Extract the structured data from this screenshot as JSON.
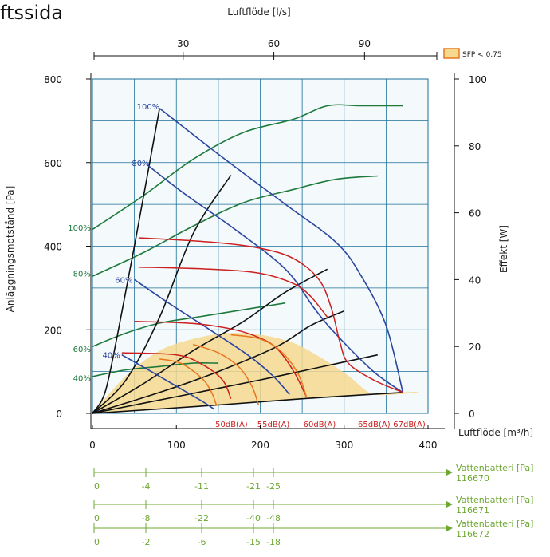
{
  "title": "ftssida",
  "chart_data": {
    "type": "line",
    "top_axis": {
      "label": "Luftflöde [l/s]",
      "ticks": [
        "30",
        "60",
        "90"
      ],
      "range": [
        0,
        111
      ]
    },
    "x_axis": {
      "label": "Luftflöde [m³/h]",
      "ticks": [
        "0",
        "100",
        "200",
        "300",
        "400"
      ],
      "range": [
        0,
        400
      ]
    },
    "y_left": {
      "label": "Anläggningsmotstånd [Pa]",
      "ticks": [
        "0",
        "200",
        "400",
        "600",
        "800"
      ],
      "range": [
        0,
        800
      ]
    },
    "y_right": {
      "label": "Effekt [W]",
      "ticks": [
        "0",
        "20",
        "40",
        "60",
        "80",
        "100"
      ],
      "range": [
        0,
        100
      ]
    },
    "legend": {
      "label": "SFP < 0,75",
      "color": "#f5d98e",
      "border": "#e8761c",
      "placement": "top-right"
    },
    "grid": true,
    "colors": {
      "pressure": "#2a45a0",
      "power": "#1e7a3c",
      "system": "#111111",
      "sound": "#cc1f1f",
      "sfp_border": "#e8761c",
      "sfp_fill": "#f5d98e",
      "batteries": "#6ea832"
    },
    "pressure_curves": [
      {
        "name": "100%",
        "points": [
          [
            80,
            730
          ],
          [
            150,
            620
          ],
          [
            230,
            500
          ],
          [
            290,
            410
          ],
          [
            320,
            330
          ],
          [
            350,
            210
          ],
          [
            370,
            50
          ]
        ]
      },
      {
        "name": "80%",
        "points": [
          [
            65,
            595
          ],
          [
            110,
            525
          ],
          [
            170,
            440
          ],
          [
            230,
            345
          ],
          [
            265,
            250
          ],
          [
            290,
            190
          ],
          [
            335,
            100
          ],
          [
            370,
            50
          ]
        ]
      },
      {
        "name": "60%",
        "points": [
          [
            50,
            320
          ],
          [
            90,
            265
          ],
          [
            140,
            200
          ],
          [
            185,
            140
          ],
          [
            215,
            90
          ],
          [
            235,
            45
          ]
        ]
      },
      {
        "name": "40%",
        "points": [
          [
            35,
            140
          ],
          [
            70,
            100
          ],
          [
            100,
            65
          ],
          [
            130,
            30
          ],
          [
            145,
            10
          ]
        ]
      }
    ],
    "power_curves": [
      {
        "name": "100%",
        "points": [
          [
            0,
            55
          ],
          [
            60,
            65
          ],
          [
            120,
            76
          ],
          [
            180,
            84
          ],
          [
            240,
            88
          ],
          [
            280,
            92
          ],
          [
            320,
            92
          ],
          [
            370,
            92
          ]
        ]
      },
      {
        "name": "80%",
        "points": [
          [
            0,
            41
          ],
          [
            60,
            48
          ],
          [
            120,
            56
          ],
          [
            180,
            63
          ],
          [
            240,
            67
          ],
          [
            290,
            70
          ],
          [
            340,
            71
          ]
        ]
      },
      {
        "name": "60%",
        "points": [
          [
            0,
            20
          ],
          [
            40,
            24
          ],
          [
            80,
            27
          ],
          [
            130,
            29
          ],
          [
            180,
            31
          ],
          [
            230,
            33
          ]
        ]
      },
      {
        "name": "40%",
        "points": [
          [
            0,
            11
          ],
          [
            40,
            13
          ],
          [
            80,
            14
          ],
          [
            120,
            15
          ],
          [
            150,
            15
          ]
        ]
      }
    ],
    "system_curves": [
      {
        "points": [
          [
            0,
            0
          ],
          [
            15,
            50
          ],
          [
            30,
            190
          ],
          [
            50,
            400
          ],
          [
            80,
            730
          ]
        ]
      },
      {
        "points": [
          [
            0,
            0
          ],
          [
            40,
            80
          ],
          [
            80,
            230
          ],
          [
            120,
            430
          ],
          [
            165,
            570
          ]
        ]
      },
      {
        "points": [
          [
            0,
            0
          ],
          [
            60,
            70
          ],
          [
            120,
            150
          ],
          [
            180,
            220
          ],
          [
            230,
            290
          ],
          [
            280,
            345
          ]
        ]
      },
      {
        "points": [
          [
            0,
            0
          ],
          [
            80,
            50
          ],
          [
            150,
            100
          ],
          [
            220,
            160
          ],
          [
            260,
            210
          ],
          [
            300,
            245
          ]
        ]
      },
      {
        "points": [
          [
            0,
            0
          ],
          [
            100,
            40
          ],
          [
            200,
            80
          ],
          [
            270,
            110
          ],
          [
            340,
            140
          ]
        ]
      },
      {
        "points": [
          [
            0,
            0
          ],
          [
            150,
            20
          ],
          [
            250,
            35
          ],
          [
            370,
            50
          ]
        ]
      }
    ],
    "sound_curves": [
      {
        "label": "",
        "points": [
          [
            55,
            420
          ],
          [
            140,
            410
          ],
          [
            200,
            395
          ],
          [
            240,
            370
          ],
          [
            270,
            320
          ],
          [
            285,
            250
          ],
          [
            295,
            170
          ],
          [
            305,
            120
          ],
          [
            335,
            80
          ],
          [
            370,
            50
          ]
        ]
      },
      {
        "label": "",
        "points": [
          [
            55,
            350
          ],
          [
            140,
            345
          ],
          [
            200,
            335
          ],
          [
            240,
            310
          ],
          [
            260,
            280
          ],
          [
            280,
            230
          ]
        ]
      },
      {
        "label": "",
        "points": [
          [
            50,
            220
          ],
          [
            120,
            215
          ],
          [
            170,
            200
          ],
          [
            200,
            180
          ],
          [
            220,
            155
          ],
          [
            240,
            100
          ],
          [
            255,
            40
          ]
        ]
      },
      {
        "label": "",
        "points": [
          [
            35,
            145
          ],
          [
            100,
            140
          ],
          [
            130,
            118
          ],
          [
            155,
            80
          ],
          [
            165,
            35
          ]
        ]
      },
      {
        "label": "50dB(A)",
        "points": [
          [
            80,
            130
          ],
          [
            105,
            120
          ],
          [
            130,
            85
          ],
          [
            142,
            50
          ],
          [
            148,
            18
          ]
        ]
      },
      {
        "label": "55dB(A)",
        "points": [
          [
            120,
            165
          ],
          [
            150,
            145
          ],
          [
            175,
            110
          ],
          [
            190,
            65
          ],
          [
            198,
            20
          ]
        ]
      },
      {
        "label": "60dB(A)",
        "points": [
          [
            165,
            188
          ],
          [
            200,
            178
          ],
          [
            225,
            148
          ],
          [
            245,
            95
          ],
          [
            255,
            40
          ]
        ]
      }
    ],
    "sfp_region": {
      "points": [
        [
          0,
          0
        ],
        [
          40,
          90
        ],
        [
          80,
          150
        ],
        [
          120,
          178
        ],
        [
          160,
          192
        ],
        [
          200,
          188
        ],
        [
          240,
          168
        ],
        [
          275,
          130
        ],
        [
          305,
          90
        ],
        [
          335,
          45
        ],
        [
          370,
          50
        ],
        [
          0,
          0
        ]
      ]
    },
    "labels": [
      {
        "text": "100%",
        "x": 80,
        "y": 735,
        "color": "pressure"
      },
      {
        "text": "80%",
        "x": 68,
        "y": 600,
        "color": "pressure"
      },
      {
        "text": "60%",
        "x": 48,
        "y": 320,
        "color": "pressure"
      },
      {
        "text": "40%",
        "x": 33,
        "y": 140,
        "color": "pressure"
      },
      {
        "text": "100%",
        "x": -2,
        "y": 445,
        "color": "power"
      },
      {
        "text": "80%",
        "x": -2,
        "y": 335,
        "color": "power"
      },
      {
        "text": "60%",
        "x": -2,
        "y": 155,
        "color": "power"
      },
      {
        "text": "40%",
        "x": -2,
        "y": 85,
        "color": "power"
      },
      {
        "text": "50dB(A)",
        "x": 185,
        "y": -25,
        "color": "sound"
      },
      {
        "text": "55dB(A)",
        "x": 235,
        "y": -25,
        "color": "sound"
      },
      {
        "text": "60dB(A)",
        "x": 290,
        "y": -25,
        "color": "sound"
      },
      {
        "text": "65dB(A)",
        "x": 355,
        "y": -25,
        "color": "sound"
      },
      {
        "text": "67dB(A)",
        "x": 397,
        "y": -25,
        "color": "sound"
      }
    ],
    "water_batteries": [
      {
        "label": "Vattenbatteri [Pa]",
        "model": "116670",
        "ticks": [
          "0",
          "-4",
          "-11",
          "-21",
          "-25"
        ],
        "positions": [
          0,
          65,
          135,
          200,
          225
        ]
      },
      {
        "label": "Vattenbatteri [Pa]",
        "model": "116671",
        "ticks": [
          "0",
          "-8",
          "-22",
          "-40",
          "-48"
        ],
        "positions": [
          0,
          65,
          135,
          200,
          225
        ]
      },
      {
        "label": "Vattenbatteri [Pa]",
        "model": "116672",
        "ticks": [
          "0",
          "-2",
          "-6",
          "-15",
          "-18"
        ],
        "positions": [
          0,
          65,
          135,
          200,
          225
        ]
      }
    ]
  }
}
